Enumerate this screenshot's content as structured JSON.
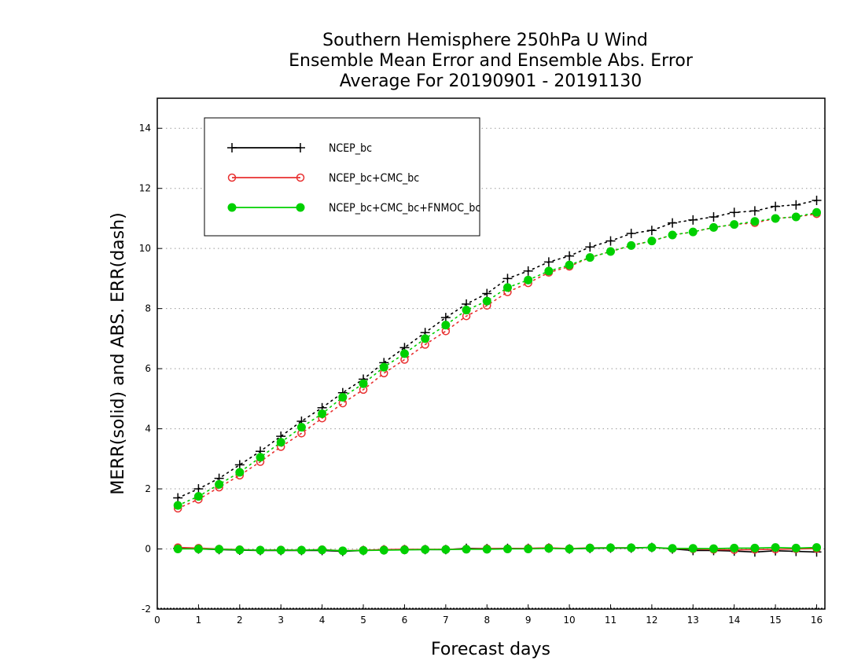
{
  "chart_data": {
    "type": "line",
    "title_lines": [
      "Southern Hemisphere 250hPa U Wind",
      "Ensemble Mean Error and Ensemble Abs. Error",
      "Average For 20190901 - 20191130"
    ],
    "xlabel": "Forecast days",
    "ylabel": "MERR(solid) and ABS. ERR(dash)",
    "xlim": [
      0,
      16.2
    ],
    "ylim": [
      -2,
      15
    ],
    "xticks": [
      "0",
      "1",
      "2",
      "3",
      "4",
      "5",
      "6",
      "7",
      "8",
      "9",
      "10",
      "11",
      "12",
      "13",
      "14",
      "15",
      "16"
    ],
    "yticks": [
      "-2",
      "0",
      "2",
      "4",
      "6",
      "8",
      "10",
      "12",
      "14"
    ],
    "grid": "horizontal dotted",
    "legend_position": "top-left",
    "colors": {
      "NCEP_bc": "#000000",
      "NCEP_bc+CMC_bc": "#e83030",
      "NCEP_bc+CMC_bc+FNMOC_bc": "#00d000"
    },
    "x": [
      0.5,
      1,
      1.5,
      2,
      2.5,
      3,
      3.5,
      4,
      4.5,
      5,
      5.5,
      6,
      6.5,
      7,
      7.5,
      8,
      8.5,
      9,
      9.5,
      10,
      10.5,
      11,
      11.5,
      12,
      12.5,
      13,
      13.5,
      14,
      14.5,
      15,
      15.5,
      16
    ],
    "series": [
      {
        "name": "NCEP_bc",
        "marker": "plus",
        "color": "#000000",
        "abs_err": [
          1.7,
          2.0,
          2.35,
          2.8,
          3.25,
          3.75,
          4.25,
          4.7,
          5.2,
          5.65,
          6.2,
          6.7,
          7.2,
          7.7,
          8.15,
          8.5,
          9.0,
          9.25,
          9.55,
          9.75,
          10.05,
          10.25,
          10.5,
          10.6,
          10.85,
          10.95,
          11.05,
          11.2,
          11.25,
          11.4,
          11.45,
          11.6
        ],
        "mean_err": [
          0.02,
          0.0,
          -0.02,
          -0.04,
          -0.05,
          -0.05,
          -0.05,
          -0.05,
          -0.08,
          -0.05,
          -0.03,
          -0.02,
          -0.02,
          -0.02,
          0.02,
          0.01,
          0.02,
          0.02,
          0.03,
          0.0,
          0.02,
          0.03,
          0.03,
          0.05,
          0.0,
          -0.05,
          -0.05,
          -0.07,
          -0.1,
          -0.06,
          -0.08,
          -0.1
        ]
      },
      {
        "name": "NCEP_bc+CMC_bc",
        "marker": "open-circle",
        "color": "#e83030",
        "abs_err": [
          1.35,
          1.65,
          2.05,
          2.45,
          2.9,
          3.4,
          3.85,
          4.35,
          4.85,
          5.3,
          5.85,
          6.3,
          6.8,
          7.25,
          7.75,
          8.1,
          8.55,
          8.85,
          9.2,
          9.4,
          9.7,
          9.9,
          10.1,
          10.25,
          10.45,
          10.55,
          10.7,
          10.8,
          10.85,
          11.0,
          11.05,
          11.15
        ],
        "mean_err": [
          0.05,
          0.03,
          0.0,
          -0.02,
          -0.04,
          -0.03,
          -0.04,
          -0.02,
          -0.06,
          -0.04,
          -0.02,
          -0.01,
          -0.01,
          -0.01,
          0.0,
          0.01,
          0.01,
          0.02,
          0.04,
          0.01,
          0.04,
          0.04,
          0.04,
          0.05,
          0.01,
          0.0,
          -0.02,
          -0.03,
          -0.02,
          -0.01,
          0.0,
          0.01
        ]
      },
      {
        "name": "NCEP_bc+CMC_bc+FNMOC_bc",
        "marker": "filled-circle",
        "color": "#00d000",
        "abs_err": [
          1.45,
          1.75,
          2.15,
          2.55,
          3.05,
          3.55,
          4.05,
          4.5,
          5.05,
          5.5,
          6.05,
          6.5,
          7.0,
          7.45,
          7.95,
          8.25,
          8.7,
          8.95,
          9.25,
          9.45,
          9.7,
          9.9,
          10.1,
          10.25,
          10.45,
          10.55,
          10.7,
          10.8,
          10.9,
          11.0,
          11.05,
          11.2
        ],
        "mean_err": [
          0.0,
          0.0,
          -0.01,
          -0.03,
          -0.04,
          -0.04,
          -0.04,
          -0.03,
          -0.06,
          -0.05,
          -0.04,
          -0.03,
          -0.02,
          -0.02,
          -0.01,
          -0.01,
          0.0,
          0.0,
          0.02,
          0.0,
          0.03,
          0.04,
          0.04,
          0.05,
          0.02,
          0.02,
          0.01,
          0.03,
          0.03,
          0.05,
          0.03,
          0.05
        ]
      }
    ]
  }
}
